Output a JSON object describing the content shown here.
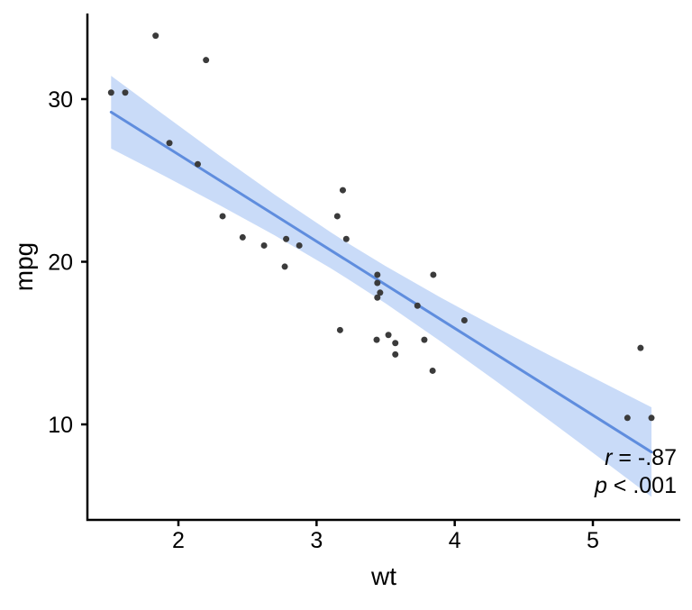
{
  "chart_data": {
    "type": "scatter",
    "title": "",
    "xlabel": "wt",
    "ylabel": "mpg",
    "xlim": [
      1.3413,
      5.6326
    ],
    "ylim": [
      4.128,
      35.263
    ],
    "x_ticks": [
      2,
      3,
      4,
      5
    ],
    "y_ticks": [
      10,
      20,
      30
    ],
    "grid": "off",
    "legend": "none",
    "points": [
      [
        2.62,
        21.0
      ],
      [
        2.875,
        21.0
      ],
      [
        2.32,
        22.8
      ],
      [
        3.215,
        21.4
      ],
      [
        3.44,
        18.7
      ],
      [
        3.46,
        18.1
      ],
      [
        3.57,
        14.3
      ],
      [
        3.19,
        24.4
      ],
      [
        3.15,
        22.8
      ],
      [
        3.44,
        19.2
      ],
      [
        3.44,
        17.8
      ],
      [
        4.07,
        16.4
      ],
      [
        3.73,
        17.3
      ],
      [
        3.78,
        15.2
      ],
      [
        5.25,
        10.4
      ],
      [
        5.424,
        10.4
      ],
      [
        5.345,
        14.7
      ],
      [
        2.2,
        32.4
      ],
      [
        1.615,
        30.4
      ],
      [
        1.835,
        33.9
      ],
      [
        2.465,
        21.5
      ],
      [
        3.52,
        15.5
      ],
      [
        3.435,
        15.2
      ],
      [
        3.84,
        13.3
      ],
      [
        3.845,
        19.2
      ],
      [
        1.935,
        27.3
      ],
      [
        2.14,
        26.0
      ],
      [
        1.513,
        30.4
      ],
      [
        3.17,
        15.8
      ],
      [
        2.77,
        19.7
      ],
      [
        3.57,
        15.0
      ],
      [
        2.78,
        21.4
      ]
    ],
    "regression_line": {
      "method": "lm",
      "x_start": 1.513,
      "y_start": 29.2,
      "x_end": 5.424,
      "y_end": 8.3
    },
    "confidence_band": {
      "x": [
        1.513,
        1.9,
        2.3,
        2.7,
        3.1,
        3.2172,
        3.5,
        3.9,
        4.3,
        4.7,
        5.1,
        5.424
      ],
      "upper": [
        31.43,
        29.0,
        26.51,
        24.11,
        21.83,
        21.19,
        19.73,
        17.79,
        15.96,
        14.19,
        12.45,
        11.05
      ],
      "lower": [
        26.96,
        25.27,
        23.47,
        21.61,
        19.61,
        18.99,
        17.44,
        15.09,
        12.65,
        10.15,
        7.62,
        5.55
      ]
    },
    "annotation": {
      "r_var": "r",
      "r_text": " = -.87",
      "p_var": "p",
      "p_text": " < .001"
    },
    "colors": {
      "point": "#3b3b3b",
      "line": "#5f8dde",
      "band": "#c9dbf8",
      "axis": "#000000",
      "text": "#000000",
      "background": "#ffffff"
    }
  }
}
